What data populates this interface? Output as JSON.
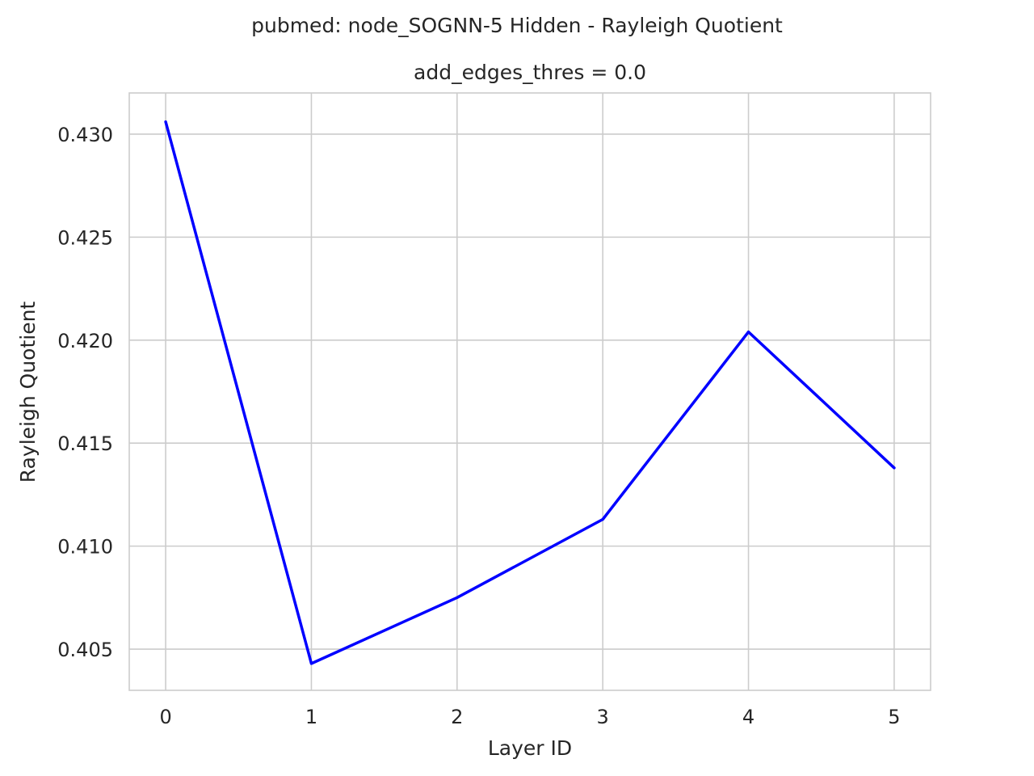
{
  "chart_data": {
    "type": "line",
    "suptitle": "pubmed: node_SOGNN-5 Hidden - Rayleigh Quotient",
    "title": "add_edges_thres = 0.0",
    "xlabel": "Layer ID",
    "ylabel": "Rayleigh Quotient",
    "x": [
      0,
      1,
      2,
      3,
      4,
      5
    ],
    "series": [
      {
        "values": [
          0.4306,
          0.4043,
          0.4075,
          0.4113,
          0.4204,
          0.4138
        ],
        "color": "#0000ff"
      }
    ],
    "xlim": [
      -0.25,
      5.25
    ],
    "ylim": [
      0.403,
      0.432
    ],
    "xticks": [
      0,
      1,
      2,
      3,
      4,
      5
    ],
    "xtick_labels": [
      "0",
      "1",
      "2",
      "3",
      "4",
      "5"
    ],
    "yticks": [
      0.405,
      0.41,
      0.415,
      0.42,
      0.425,
      0.43
    ],
    "ytick_labels": [
      "0.405",
      "0.410",
      "0.415",
      "0.420",
      "0.425",
      "0.430"
    ],
    "grid": true,
    "style": "whitegrid",
    "grid_color": "#cccccc",
    "text_color": "#262626"
  }
}
